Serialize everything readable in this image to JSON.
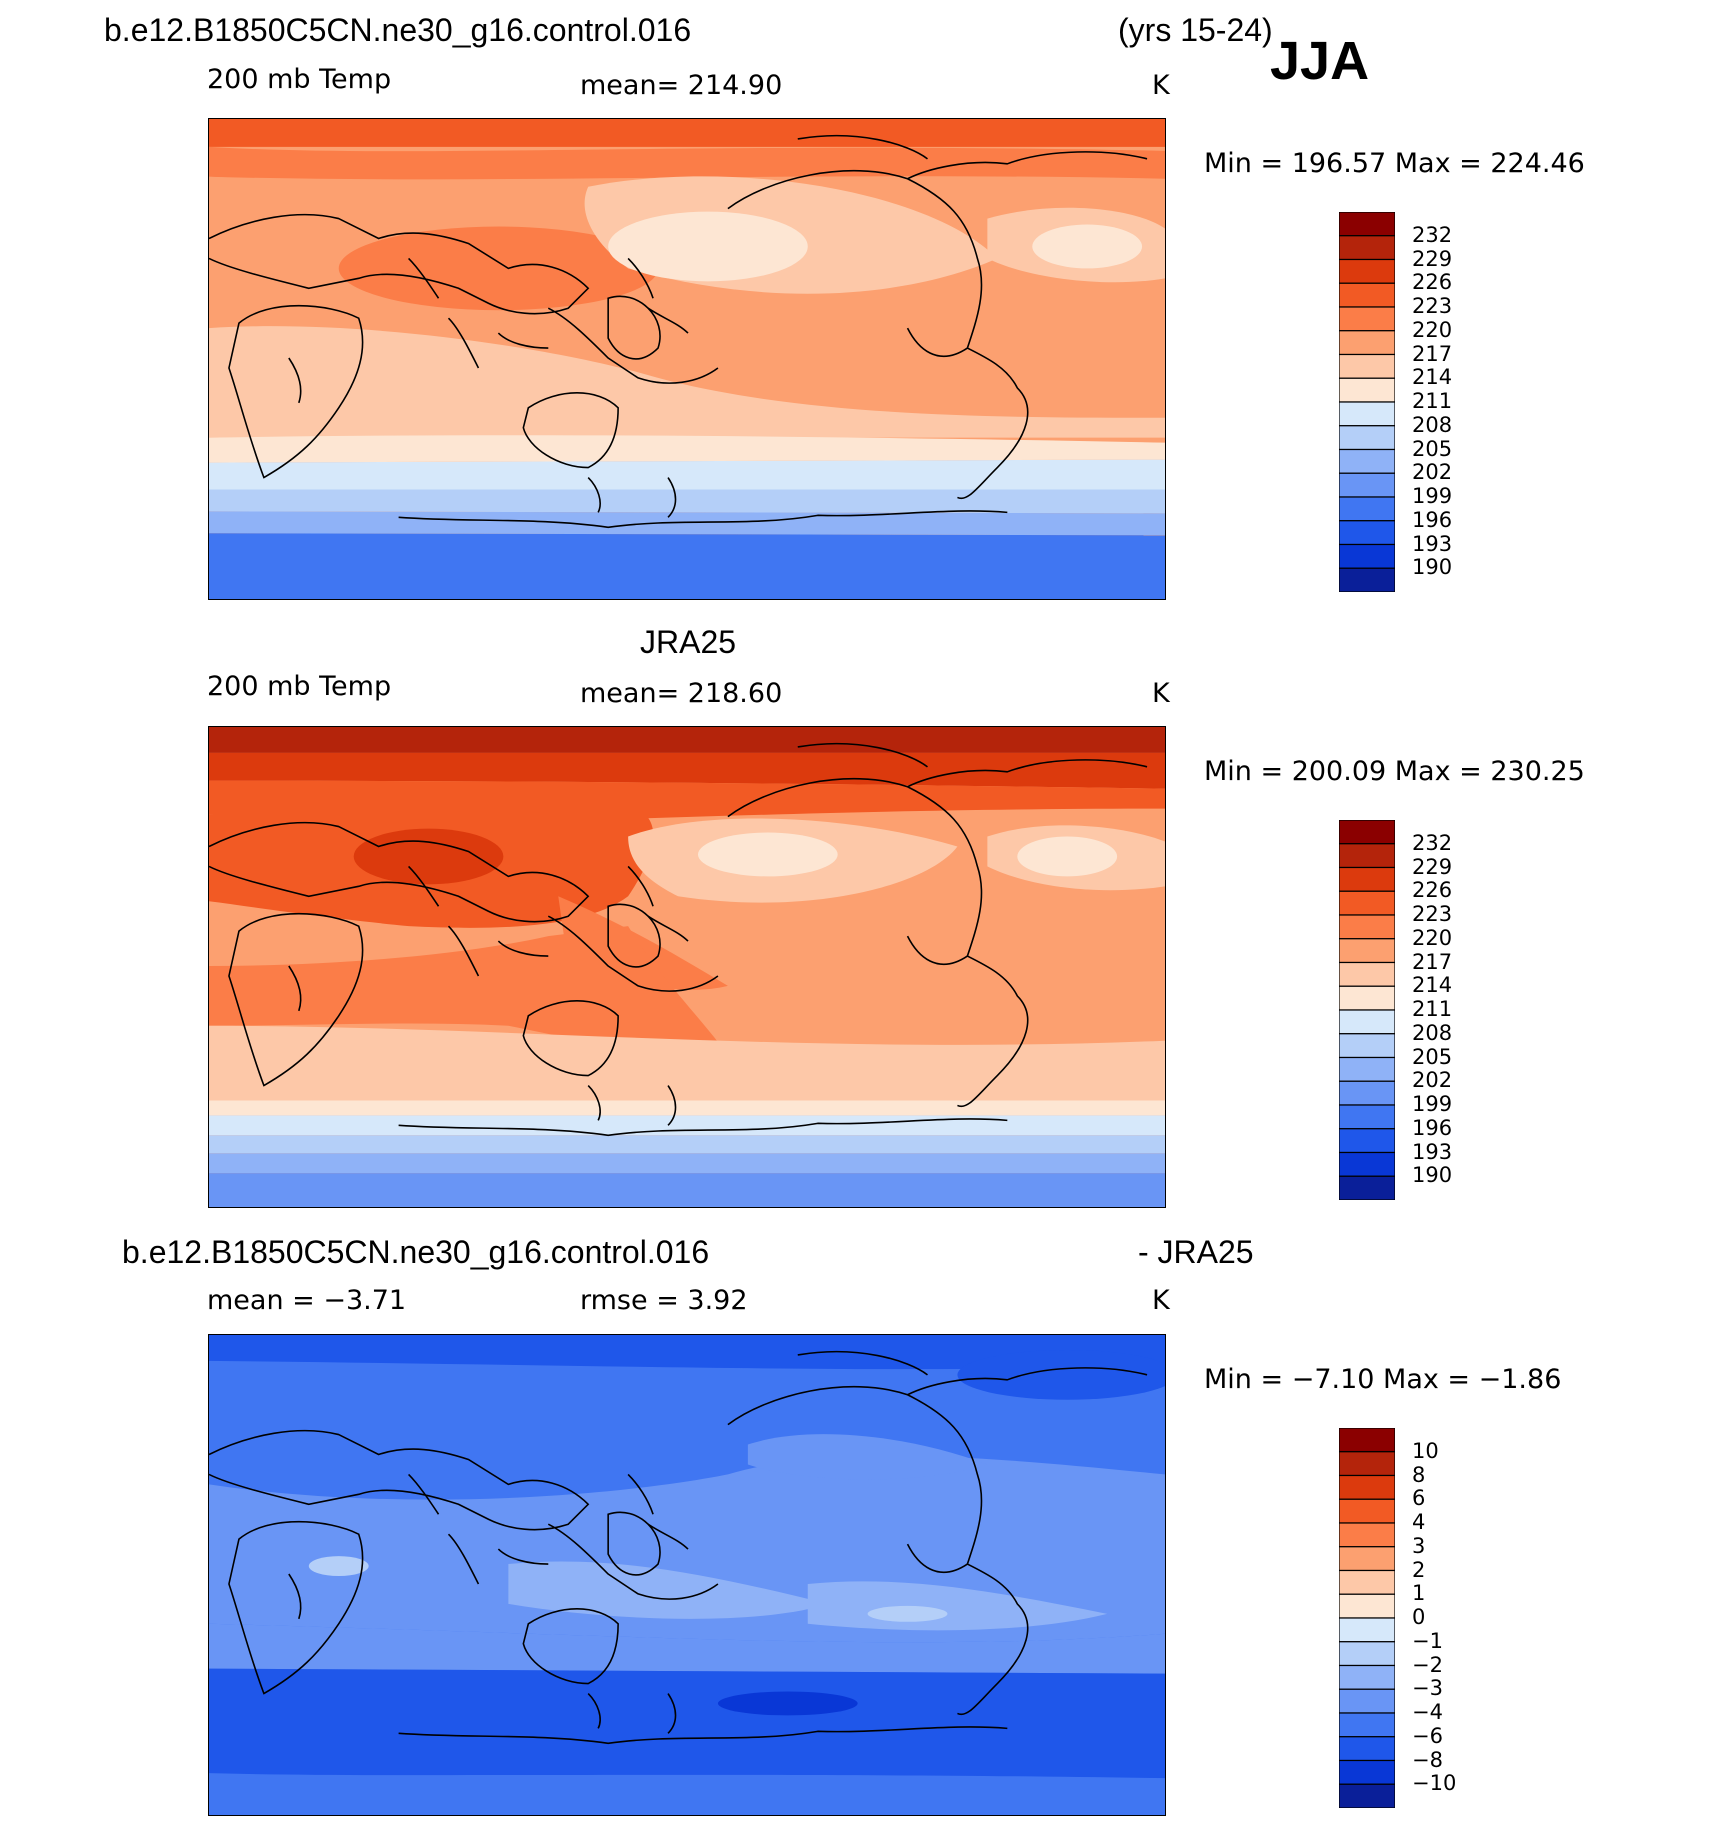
{
  "header": {
    "case_name": "b.e12.B1850C5CN.ne30_g16.control.016",
    "years": "(yrs 15-24)",
    "season": "JJA"
  },
  "panels": [
    {
      "title": "",
      "variable": "200 mb Temp",
      "stat": "mean=  214.90",
      "units": "K",
      "minmax": "Min  =  196.57  Max  =  224.46",
      "colorbar": {
        "labels": [
          "232",
          "229",
          "226",
          "223",
          "220",
          "217",
          "214",
          "211",
          "208",
          "205",
          "202",
          "199",
          "196",
          "193",
          "190"
        ],
        "colors": [
          "#8b0000",
          "#b4240b",
          "#dc3a0d",
          "#f25a24",
          "#fb7d48",
          "#fca070",
          "#fdc8a8",
          "#fde6d3",
          "#d6e8fa",
          "#b4cff8",
          "#8fb2f7",
          "#6995f5",
          "#4076f2",
          "#1f57ea",
          "#0937d6",
          "#0a1f99"
        ]
      }
    },
    {
      "title": "JRA25",
      "variable": "200 mb Temp",
      "stat": "mean=  218.60",
      "units": "K",
      "minmax": "Min  =  200.09  Max  =  230.25",
      "colorbar": {
        "labels": [
          "232",
          "229",
          "226",
          "223",
          "220",
          "217",
          "214",
          "211",
          "208",
          "205",
          "202",
          "199",
          "196",
          "193",
          "190"
        ],
        "colors": [
          "#8b0000",
          "#b4240b",
          "#dc3a0d",
          "#f25a24",
          "#fb7d48",
          "#fca070",
          "#fdc8a8",
          "#fde6d3",
          "#d6e8fa",
          "#b4cff8",
          "#8fb2f7",
          "#6995f5",
          "#4076f2",
          "#1f57ea",
          "#0937d6",
          "#0a1f99"
        ]
      }
    },
    {
      "title_left": "b.e12.B1850C5CN.ne30_g16.control.016",
      "title_right": "- JRA25",
      "variable": "mean =   −3.71",
      "stat": "rmse =     3.92",
      "units": "K",
      "minmax": "Min  =   −7.10  Max  =   −1.86",
      "colorbar": {
        "labels": [
          "10",
          "8",
          "6",
          "4",
          "3",
          "2",
          "1",
          "0",
          "−1",
          "−2",
          "−3",
          "−4",
          "−6",
          "−8",
          "−10"
        ],
        "colors": [
          "#8b0000",
          "#b4240b",
          "#dc3a0d",
          "#f25a24",
          "#fb7d48",
          "#fca070",
          "#fdc8a8",
          "#fde6d3",
          "#d6e8fa",
          "#b4cff8",
          "#8fb2f7",
          "#6995f5",
          "#4076f2",
          "#1f57ea",
          "#0937d6",
          "#0a1f99"
        ]
      }
    }
  ]
}
